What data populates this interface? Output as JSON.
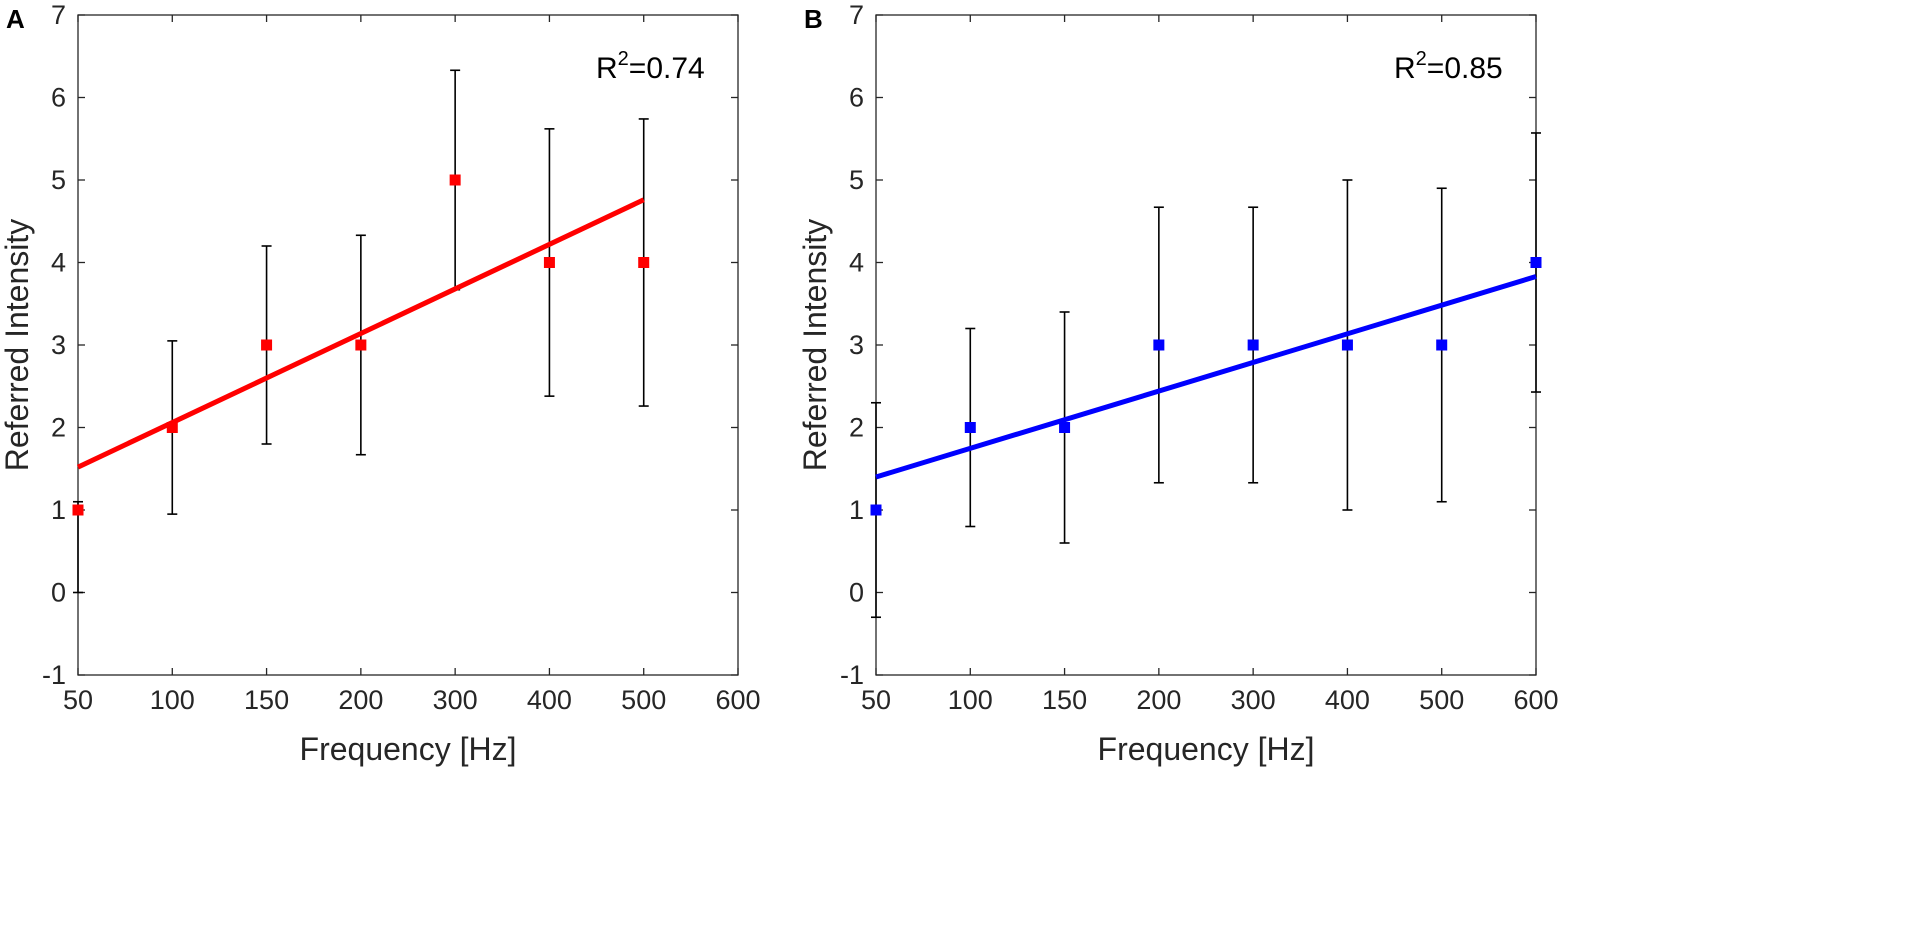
{
  "chart_data": [
    {
      "type": "scatter",
      "panel_label": "A",
      "xlabel": "Frequency [Hz]",
      "ylabel": "Referred Intensity",
      "x_tick_labels": [
        "50",
        "100",
        "150",
        "200",
        "300",
        "400",
        "500",
        "600"
      ],
      "y_tick_labels": [
        "-1",
        "0",
        "1",
        "2",
        "3",
        "4",
        "5",
        "6",
        "7"
      ],
      "ylim": [
        -1,
        7
      ],
      "x": [
        "50",
        "100",
        "150",
        "200",
        "300",
        "400",
        "500"
      ],
      "y": [
        1,
        2,
        3,
        3,
        5,
        4,
        4
      ],
      "error_low": [
        0.0,
        0.95,
        1.8,
        1.67,
        3.67,
        2.38,
        2.26
      ],
      "error_high": [
        1.1,
        3.05,
        4.2,
        4.33,
        6.33,
        5.62,
        5.74
      ],
      "fit_line": {
        "start_y": 1.52,
        "end_y": 4.76
      },
      "annotation": {
        "base": "R",
        "superscript": "2",
        "value": "=0.74"
      },
      "color": "#ff0000"
    },
    {
      "type": "scatter",
      "panel_label": "B",
      "xlabel": "Frequency [Hz]",
      "ylabel": "Referred Intensity",
      "x_tick_labels": [
        "50",
        "100",
        "150",
        "200",
        "300",
        "400",
        "500",
        "600"
      ],
      "y_tick_labels": [
        "-1",
        "0",
        "1",
        "2",
        "3",
        "4",
        "5",
        "6",
        "7"
      ],
      "ylim": [
        -1,
        7
      ],
      "x": [
        "50",
        "100",
        "150",
        "200",
        "300",
        "400",
        "500",
        "600"
      ],
      "y": [
        1,
        2,
        2,
        3,
        3,
        3,
        3,
        4
      ],
      "error_low": [
        -0.3,
        0.8,
        0.6,
        1.33,
        1.33,
        1.0,
        1.1,
        2.43
      ],
      "error_high": [
        2.3,
        3.2,
        3.4,
        4.67,
        4.67,
        5.0,
        4.9,
        5.57
      ],
      "fit_line": {
        "start_y": 1.4,
        "end_y": 3.83
      },
      "annotation": {
        "base": "R",
        "superscript": "2",
        "value": "=0.85"
      },
      "color": "#0000ff"
    }
  ]
}
